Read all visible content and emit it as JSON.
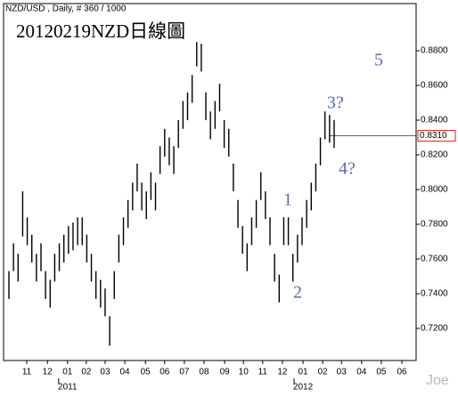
{
  "chart_data": {
    "type": "ohlc",
    "header": "NZD/USD , Daily, # 360 / 1000",
    "title": "20120219NZD日線圖",
    "watermark": "Joe",
    "color": "#000000",
    "high": [
      0.753,
      0.769,
      0.763,
      0.799,
      0.784,
      0.774,
      0.763,
      0.769,
      0.753,
      0.748,
      0.763,
      0.769,
      0.774,
      0.779,
      0.781,
      0.784,
      0.784,
      0.774,
      0.763,
      0.753,
      0.748,
      0.743,
      0.727,
      0.753,
      0.774,
      0.784,
      0.794,
      0.804,
      0.815,
      0.804,
      0.799,
      0.81,
      0.804,
      0.825,
      0.835,
      0.83,
      0.825,
      0.84,
      0.851,
      0.856,
      0.866,
      0.885,
      0.884,
      0.856,
      0.845,
      0.851,
      0.861,
      0.84,
      0.835,
      0.815,
      0.794,
      0.779,
      0.769,
      0.784,
      0.794,
      0.81,
      0.799,
      0.784,
      0.763,
      0.751,
      0.784,
      0.784,
      0.763,
      0.774,
      0.784,
      0.794,
      0.804,
      0.815,
      0.83,
      0.845,
      0.843,
      0.84
    ],
    "low": [
      0.737,
      0.753,
      0.747,
      0.773,
      0.768,
      0.758,
      0.747,
      0.753,
      0.737,
      0.732,
      0.747,
      0.753,
      0.758,
      0.763,
      0.765,
      0.768,
      0.768,
      0.758,
      0.747,
      0.737,
      0.732,
      0.727,
      0.71,
      0.737,
      0.758,
      0.768,
      0.778,
      0.788,
      0.799,
      0.788,
      0.783,
      0.794,
      0.788,
      0.809,
      0.819,
      0.814,
      0.809,
      0.824,
      0.835,
      0.84,
      0.85,
      0.871,
      0.868,
      0.84,
      0.829,
      0.835,
      0.845,
      0.824,
      0.819,
      0.799,
      0.778,
      0.763,
      0.753,
      0.768,
      0.778,
      0.794,
      0.783,
      0.768,
      0.747,
      0.735,
      0.768,
      0.768,
      0.747,
      0.758,
      0.768,
      0.778,
      0.788,
      0.799,
      0.814,
      0.829,
      0.827,
      0.824
    ],
    "xlim": [
      -1.17,
      88.9
    ],
    "xticks": [
      {
        "value": 3.9,
        "label": "11"
      },
      {
        "value": 8.4,
        "label": "12"
      },
      {
        "value": 12.8,
        "label": "01"
      },
      {
        "value": 16.9,
        "label": "02"
      },
      {
        "value": 21.0,
        "label": "03"
      },
      {
        "value": 25.3,
        "label": "04"
      },
      {
        "value": 29.8,
        "label": "05"
      },
      {
        "value": 34.0,
        "label": "06"
      },
      {
        "value": 38.3,
        "label": "07"
      },
      {
        "value": 42.6,
        "label": "08"
      },
      {
        "value": 47.1,
        "label": "09"
      },
      {
        "value": 51.2,
        "label": "10"
      },
      {
        "value": 55.4,
        "label": "11"
      },
      {
        "value": 59.7,
        "label": "12"
      },
      {
        "value": 64.2,
        "label": "01"
      },
      {
        "value": 68.5,
        "label": "02"
      },
      {
        "value": 72.6,
        "label": "03"
      },
      {
        "value": 77.0,
        "label": "04"
      },
      {
        "value": 81.3,
        "label": "05"
      },
      {
        "value": 85.8,
        "label": "06"
      }
    ],
    "year_ticks": [
      {
        "value": 12.8,
        "label": "2011"
      },
      {
        "value": 64.2,
        "label": "2012"
      }
    ],
    "ylim": [
      0.7015,
      0.9072
    ],
    "yticks": [
      {
        "value": 0.72,
        "label": "0.7200"
      },
      {
        "value": 0.74,
        "label": "0.7400"
      },
      {
        "value": 0.76,
        "label": "0.7600"
      },
      {
        "value": 0.78,
        "label": "0.7800"
      },
      {
        "value": 0.8,
        "label": "0.8000"
      },
      {
        "value": 0.82,
        "label": "0.8200"
      },
      {
        "value": 0.84,
        "label": "0.8400"
      },
      {
        "value": 0.86,
        "label": "0.8600"
      },
      {
        "value": 0.88,
        "label": "0.8800"
      }
    ],
    "current": {
      "value": 0.831,
      "label": "0.8310"
    },
    "annotations": [
      "5",
      "3?",
      "4?",
      "1",
      "2"
    ]
  }
}
